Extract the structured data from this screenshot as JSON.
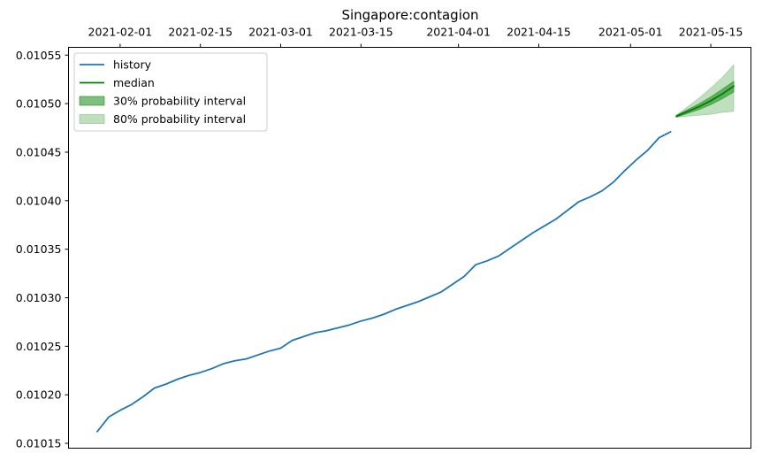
{
  "chart_data": {
    "type": "line",
    "title": "Singapore:contagion",
    "xlabel": "",
    "ylabel": "",
    "x_axis_position": "top",
    "xlim": [
      "2021-01-23",
      "2021-05-22"
    ],
    "ylim": [
      0.010145,
      0.010558
    ],
    "x_ticks": [
      "2021-02-01",
      "2021-02-15",
      "2021-03-01",
      "2021-03-15",
      "2021-04-01",
      "2021-04-15",
      "2021-05-01",
      "2021-05-15"
    ],
    "y_ticks": [
      "0.01015",
      "0.01020",
      "0.01025",
      "0.01030",
      "0.01035",
      "0.01040",
      "0.01045",
      "0.01050",
      "0.01055"
    ],
    "grid": false,
    "legend": {
      "placement": "top-left",
      "entries": [
        {
          "label": "history",
          "kind": "line",
          "color": "#1f77b4"
        },
        {
          "label": "median",
          "kind": "line",
          "color": "#008000"
        },
        {
          "label": "30% probability interval",
          "kind": "band",
          "color": "#008000",
          "opacity": 0.5
        },
        {
          "label": "80% probability interval",
          "kind": "band",
          "color": "#008000",
          "opacity": 0.25
        }
      ]
    },
    "series": [
      {
        "name": "history",
        "color": "#1f77b4",
        "x": [
          "2021-01-28",
          "2021-01-30",
          "2021-02-01",
          "2021-02-03",
          "2021-02-05",
          "2021-02-07",
          "2021-02-09",
          "2021-02-11",
          "2021-02-13",
          "2021-02-15",
          "2021-02-17",
          "2021-02-19",
          "2021-02-21",
          "2021-02-23",
          "2021-02-25",
          "2021-02-27",
          "2021-03-01",
          "2021-03-03",
          "2021-03-05",
          "2021-03-07",
          "2021-03-09",
          "2021-03-11",
          "2021-03-13",
          "2021-03-15",
          "2021-03-17",
          "2021-03-19",
          "2021-03-21",
          "2021-03-23",
          "2021-03-25",
          "2021-03-27",
          "2021-03-29",
          "2021-03-31",
          "2021-04-02",
          "2021-04-04",
          "2021-04-06",
          "2021-04-08",
          "2021-04-10",
          "2021-04-12",
          "2021-04-14",
          "2021-04-16",
          "2021-04-18",
          "2021-04-20",
          "2021-04-22",
          "2021-04-24",
          "2021-04-26",
          "2021-04-28",
          "2021-04-30",
          "2021-05-02",
          "2021-05-04",
          "2021-05-06",
          "2021-05-08"
        ],
        "values": [
          0.010162,
          0.010177,
          0.010184,
          0.01019,
          0.010198,
          0.010207,
          0.010211,
          0.010216,
          0.01022,
          0.010223,
          0.010227,
          0.010232,
          0.010235,
          0.010237,
          0.010241,
          0.010245,
          0.010248,
          0.010256,
          0.01026,
          0.010264,
          0.010266,
          0.010269,
          0.010272,
          0.010276,
          0.010279,
          0.010283,
          0.010288,
          0.010292,
          0.010296,
          0.010301,
          0.010306,
          0.010314,
          0.010322,
          0.010334,
          0.010338,
          0.010343,
          0.010351,
          0.010359,
          0.010367,
          0.010374,
          0.010381,
          0.01039,
          0.010399,
          0.010404,
          0.01041,
          0.010419,
          0.010431,
          0.010442,
          0.010452,
          0.010465,
          0.010471
        ]
      },
      {
        "name": "median",
        "color": "#008000",
        "x": [
          "2021-05-09",
          "2021-05-11",
          "2021-05-13",
          "2021-05-15",
          "2021-05-17",
          "2021-05-19"
        ],
        "values": [
          0.010487,
          0.010492,
          0.010497,
          0.010503,
          0.01051,
          0.010518
        ]
      }
    ],
    "intervals": [
      {
        "name": "80% probability interval",
        "color": "#008000",
        "opacity": 0.25,
        "x": [
          "2021-05-09",
          "2021-05-11",
          "2021-05-13",
          "2021-05-15",
          "2021-05-17",
          "2021-05-19"
        ],
        "lower": [
          0.010486,
          0.010487,
          0.010488,
          0.010489,
          0.010491,
          0.010492
        ],
        "upper": [
          0.010488,
          0.010497,
          0.010506,
          0.010516,
          0.010527,
          0.01054
        ]
      },
      {
        "name": "30% probability interval",
        "color": "#008000",
        "opacity": 0.5,
        "x": [
          "2021-05-09",
          "2021-05-11",
          "2021-05-13",
          "2021-05-15",
          "2021-05-17",
          "2021-05-19"
        ],
        "lower": [
          0.010486,
          0.01049,
          0.010494,
          0.010499,
          0.010505,
          0.010512
        ],
        "upper": [
          0.010488,
          0.010494,
          0.0105,
          0.010507,
          0.010515,
          0.010523
        ]
      }
    ]
  }
}
